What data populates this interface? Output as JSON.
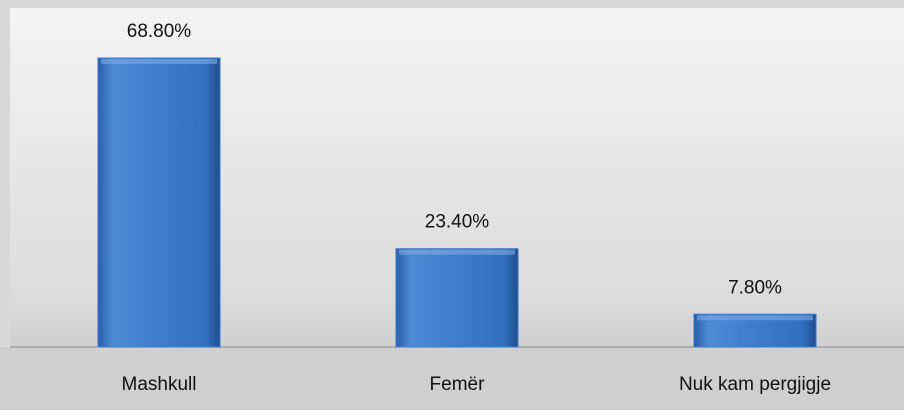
{
  "chart_data": {
    "type": "bar",
    "categories": [
      "Mashkull",
      "Femër",
      "Nuk kam pergjigje"
    ],
    "values": [
      68.8,
      23.4,
      7.8
    ],
    "value_labels": [
      "68.80%",
      "23.40%",
      "7.80%"
    ],
    "color": "#3a76c4"
  }
}
